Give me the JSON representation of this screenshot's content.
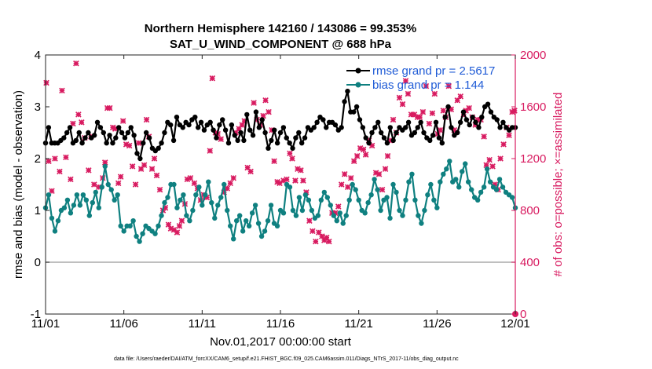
{
  "chart_data": {
    "type": "line",
    "title": "Northern Hemisphere 142160 / 143086 = 99.353%",
    "subtitle": "SAT_U_WIND_COMPONENT @ 688 hPa",
    "xlabel": "Nov.01,2017 00:00:00 start",
    "ylabel": "rmse and bias (model - observation)",
    "y2label": "# of obs: o=possible; ×=assimilated",
    "footnote": "data file: /Users/raeder/DAI/ATM_forcXX/CAM6_setup/f.e21.FHIST_BGC.f09_025.CAM6assim.011/Diags_NTrS_2017-11/obs_diag_output.nc",
    "xlim": [
      0,
      30
    ],
    "ylim": [
      -1,
      4
    ],
    "y2lim": [
      0,
      2000
    ],
    "xticks": [
      0,
      5,
      10,
      15,
      20,
      25,
      30
    ],
    "xtick_labels": [
      "11/01",
      "11/06",
      "11/11",
      "11/16",
      "11/21",
      "11/26",
      "12/01"
    ],
    "yticks": [
      -1,
      0,
      1,
      2,
      3,
      4
    ],
    "ytick_labels": [
      "-1",
      "0",
      "1",
      "2",
      "3",
      "4"
    ],
    "y2ticks": [
      0,
      400,
      800,
      1200,
      1600,
      2000
    ],
    "y2tick_labels": [
      "0",
      "400",
      "800",
      "1200",
      "1600",
      "2000"
    ],
    "legend_position": "top-right",
    "colors": {
      "rmse": "#000000",
      "bias": "#0f8080",
      "obs": "#d81b60",
      "legend_text": "#1f5bd6",
      "zero_line": "#aaaaaa"
    },
    "series": [
      {
        "name": "rmse grand pr = 2.5617",
        "legend": "rmse grand pr = 2.5617",
        "values": [
          2.3,
          2.6,
          2.3,
          2.3,
          2.3,
          2.35,
          2.4,
          2.5,
          2.6,
          2.3,
          2.35,
          2.5,
          2.3,
          2.4,
          2.5,
          2.4,
          2.45,
          2.7,
          2.6,
          2.5,
          2.3,
          2.45,
          2.3,
          2.4,
          2.6,
          2.5,
          2.4,
          2.5,
          2.6,
          2.45,
          2.1,
          2.0,
          2.3,
          2.5,
          2.4,
          2.2,
          2.15,
          2.2,
          2.3,
          2.5,
          2.7,
          2.65,
          2.35,
          2.8,
          2.65,
          2.6,
          2.7,
          2.65,
          2.75,
          2.8,
          2.6,
          2.7,
          2.55,
          2.65,
          2.7,
          2.55,
          2.4,
          2.65,
          2.75,
          2.55,
          2.3,
          2.65,
          2.45,
          2.35,
          2.5,
          2.35,
          2.85,
          2.55,
          2.45,
          2.9,
          2.6,
          2.75,
          2.5,
          2.2,
          2.35,
          2.55,
          2.3,
          2.5,
          2.6,
          2.4,
          2.3,
          2.2,
          2.4,
          2.5,
          2.3,
          2.4,
          2.6,
          2.55,
          2.6,
          2.7,
          2.8,
          2.75,
          2.6,
          2.7,
          2.7,
          2.65,
          2.55,
          2.6,
          3.1,
          3.3,
          2.9,
          2.9,
          3.0,
          2.75,
          2.6,
          2.4,
          2.3,
          2.5,
          2.6,
          2.7,
          2.5,
          2.4,
          2.3,
          2.6,
          2.35,
          2.5,
          2.6,
          2.55,
          2.6,
          2.7,
          2.45,
          2.5,
          2.6,
          2.7,
          2.5,
          2.4,
          2.35,
          2.45,
          2.7,
          2.4,
          2.3,
          2.8,
          3.0,
          2.6,
          2.45,
          2.5,
          2.7,
          2.9,
          2.75,
          2.65,
          2.8,
          2.7,
          2.6,
          2.8,
          3.0,
          3.05,
          2.9,
          2.8,
          2.75,
          2.6,
          2.7,
          2.6,
          2.55,
          2.6,
          2.6
        ],
        "marker": "dot"
      },
      {
        "name": "bias grand pr = 1.144",
        "legend": "bias grand pr = 1.144",
        "values": [
          1.05,
          1.3,
          0.85,
          0.6,
          0.8,
          1.0,
          1.05,
          1.2,
          0.95,
          1.1,
          1.3,
          1.1,
          1.3,
          1.2,
          0.9,
          1.15,
          1.35,
          1.05,
          1.45,
          1.85,
          1.5,
          1.4,
          1.2,
          1.3,
          0.7,
          0.6,
          0.7,
          0.7,
          0.8,
          0.5,
          0.4,
          0.55,
          0.7,
          0.65,
          0.6,
          0.55,
          0.7,
          0.9,
          1.15,
          1.25,
          1.5,
          1.5,
          1.05,
          1.2,
          1.3,
          0.9,
          0.8,
          1.0,
          1.3,
          1.45,
          1.1,
          1.3,
          1.55,
          1.15,
          0.85,
          1.1,
          1.25,
          1.5,
          1.0,
          0.7,
          0.45,
          0.8,
          0.9,
          0.6,
          0.8,
          0.7,
          0.95,
          1.1,
          0.75,
          0.5,
          0.6,
          0.8,
          1.1,
          0.75,
          0.7,
          1.0,
          0.95,
          1.5,
          1.45,
          1.0,
          0.9,
          1.25,
          1.0,
          1.3,
          1.2,
          1.0,
          0.85,
          0.9,
          1.2,
          1.35,
          1.25,
          1.1,
          0.9,
          0.8,
          0.95,
          0.75,
          0.9,
          1.2,
          1.5,
          1.4,
          1.2,
          1.0,
          0.95,
          1.15,
          1.3,
          1.6,
          1.4,
          1.0,
          1.2,
          1.25,
          0.85,
          1.5,
          1.35,
          1.0,
          0.9,
          1.2,
          1.55,
          1.7,
          1.2,
          0.9,
          0.75,
          1.0,
          1.3,
          1.5,
          1.2,
          1.05,
          1.55,
          1.7,
          1.8,
          1.95,
          1.55,
          1.6,
          1.45,
          1.75,
          1.9,
          1.55,
          1.4,
          1.25,
          1.2,
          1.35,
          1.45,
          1.8,
          1.55,
          1.45,
          1.4,
          1.6,
          1.45,
          1.35,
          1.3,
          1.25,
          1.05
        ],
        "marker": "dot"
      }
    ],
    "obs_assimilated": [
      {
        "x": 0.05,
        "y": 1785
      },
      {
        "x": 0.2,
        "y": 1180
      },
      {
        "x": 0.4,
        "y": 950
      },
      {
        "x": 0.6,
        "y": 1200
      },
      {
        "x": 0.9,
        "y": 1100
      },
      {
        "x": 1.05,
        "y": 1725
      },
      {
        "x": 1.3,
        "y": 1210
      },
      {
        "x": 1.6,
        "y": 1040
      },
      {
        "x": 1.75,
        "y": 1470
      },
      {
        "x": 1.95,
        "y": 1935
      },
      {
        "x": 2.1,
        "y": 1540
      },
      {
        "x": 2.3,
        "y": 1480
      },
      {
        "x": 2.5,
        "y": 1360
      },
      {
        "x": 2.75,
        "y": 1110
      },
      {
        "x": 2.9,
        "y": 1370
      },
      {
        "x": 3.1,
        "y": 1000
      },
      {
        "x": 3.4,
        "y": 980
      },
      {
        "x": 3.65,
        "y": 1050
      },
      {
        "x": 3.8,
        "y": 1170
      },
      {
        "x": 3.95,
        "y": 1590
      },
      {
        "x": 4.1,
        "y": 1590
      },
      {
        "x": 4.3,
        "y": 1440
      },
      {
        "x": 4.45,
        "y": 1430
      },
      {
        "x": 4.65,
        "y": 1010
      },
      {
        "x": 4.8,
        "y": 1060
      },
      {
        "x": 4.95,
        "y": 1490
      },
      {
        "x": 5.15,
        "y": 1310
      },
      {
        "x": 5.35,
        "y": 1300
      },
      {
        "x": 5.55,
        "y": 1140
      },
      {
        "x": 5.75,
        "y": 1000
      },
      {
        "x": 5.95,
        "y": 1320
      },
      {
        "x": 6.1,
        "y": 1120
      },
      {
        "x": 6.3,
        "y": 1150
      },
      {
        "x": 6.45,
        "y": 1500
      },
      {
        "x": 6.6,
        "y": 1370
      },
      {
        "x": 6.8,
        "y": 1120
      },
      {
        "x": 6.95,
        "y": 1200
      },
      {
        "x": 7.1,
        "y": 1070
      },
      {
        "x": 7.3,
        "y": 960
      },
      {
        "x": 7.5,
        "y": 800
      },
      {
        "x": 7.65,
        "y": 820
      },
      {
        "x": 7.85,
        "y": 690
      },
      {
        "x": 8.0,
        "y": 660
      },
      {
        "x": 8.2,
        "y": 650
      },
      {
        "x": 8.4,
        "y": 630
      },
      {
        "x": 8.55,
        "y": 680
      },
      {
        "x": 8.7,
        "y": 720
      },
      {
        "x": 8.9,
        "y": 850
      },
      {
        "x": 9.05,
        "y": 1040
      },
      {
        "x": 9.25,
        "y": 1050
      },
      {
        "x": 9.5,
        "y": 1010
      },
      {
        "x": 9.7,
        "y": 970
      },
      {
        "x": 9.9,
        "y": 880
      },
      {
        "x": 10.1,
        "y": 920
      },
      {
        "x": 10.3,
        "y": 900
      },
      {
        "x": 10.5,
        "y": 1260
      },
      {
        "x": 10.65,
        "y": 1820
      },
      {
        "x": 10.85,
        "y": 1400
      },
      {
        "x": 11.0,
        "y": 1390
      },
      {
        "x": 11.2,
        "y": 1350
      },
      {
        "x": 11.4,
        "y": 940
      },
      {
        "x": 11.6,
        "y": 970
      },
      {
        "x": 11.8,
        "y": 1010
      },
      {
        "x": 12.0,
        "y": 1050
      },
      {
        "x": 12.15,
        "y": 1400
      },
      {
        "x": 12.35,
        "y": 1430
      },
      {
        "x": 12.55,
        "y": 1460
      },
      {
        "x": 12.7,
        "y": 1490
      },
      {
        "x": 12.9,
        "y": 1130
      },
      {
        "x": 13.1,
        "y": 1100
      },
      {
        "x": 13.3,
        "y": 1630
      },
      {
        "x": 13.5,
        "y": 1500
      },
      {
        "x": 13.7,
        "y": 1460
      },
      {
        "x": 13.9,
        "y": 1530
      },
      {
        "x": 14.05,
        "y": 1650
      },
      {
        "x": 14.25,
        "y": 1560
      },
      {
        "x": 14.45,
        "y": 1420
      },
      {
        "x": 14.6,
        "y": 1180
      },
      {
        "x": 14.8,
        "y": 1020
      },
      {
        "x": 14.95,
        "y": 1010
      },
      {
        "x": 15.2,
        "y": 1030
      },
      {
        "x": 15.4,
        "y": 1040
      },
      {
        "x": 15.6,
        "y": 1240
      },
      {
        "x": 15.75,
        "y": 1200
      },
      {
        "x": 15.95,
        "y": 1030
      },
      {
        "x": 16.1,
        "y": 1120
      },
      {
        "x": 16.3,
        "y": 1110
      },
      {
        "x": 16.45,
        "y": 1030
      },
      {
        "x": 16.65,
        "y": 940
      },
      {
        "x": 16.85,
        "y": 720
      },
      {
        "x": 17.05,
        "y": 640
      },
      {
        "x": 17.25,
        "y": 560
      },
      {
        "x": 17.45,
        "y": 630
      },
      {
        "x": 17.65,
        "y": 600
      },
      {
        "x": 17.8,
        "y": 570
      },
      {
        "x": 17.95,
        "y": 590
      },
      {
        "x": 18.1,
        "y": 560
      },
      {
        "x": 18.3,
        "y": 780
      },
      {
        "x": 18.5,
        "y": 780
      },
      {
        "x": 18.7,
        "y": 830
      },
      {
        "x": 18.9,
        "y": 1000
      },
      {
        "x": 19.1,
        "y": 1080
      },
      {
        "x": 19.3,
        "y": 980
      },
      {
        "x": 19.5,
        "y": 1050
      },
      {
        "x": 19.7,
        "y": 1180
      },
      {
        "x": 19.9,
        "y": 1220
      },
      {
        "x": 20.1,
        "y": 1280
      },
      {
        "x": 20.3,
        "y": 1270
      },
      {
        "x": 20.45,
        "y": 1230
      },
      {
        "x": 20.65,
        "y": 1340
      },
      {
        "x": 20.85,
        "y": 1300
      },
      {
        "x": 21.1,
        "y": 1090
      },
      {
        "x": 21.3,
        "y": 1080
      },
      {
        "x": 21.5,
        "y": 960
      },
      {
        "x": 21.7,
        "y": 1120
      },
      {
        "x": 21.85,
        "y": 1220
      },
      {
        "x": 22.0,
        "y": 1340
      },
      {
        "x": 22.2,
        "y": 1500
      },
      {
        "x": 22.4,
        "y": 1400
      },
      {
        "x": 22.6,
        "y": 1670
      },
      {
        "x": 22.8,
        "y": 1620
      },
      {
        "x": 23.0,
        "y": 1800
      },
      {
        "x": 23.15,
        "y": 1700
      },
      {
        "x": 23.35,
        "y": 1540
      },
      {
        "x": 23.55,
        "y": 1540
      },
      {
        "x": 23.75,
        "y": 1520
      },
      {
        "x": 23.9,
        "y": 1520
      },
      {
        "x": 24.1,
        "y": 1560
      },
      {
        "x": 24.3,
        "y": 1760
      },
      {
        "x": 24.5,
        "y": 1470
      },
      {
        "x": 24.7,
        "y": 1550
      },
      {
        "x": 24.85,
        "y": 1700
      },
      {
        "x": 25.05,
        "y": 1390
      },
      {
        "x": 25.2,
        "y": 1420
      },
      {
        "x": 25.4,
        "y": 1570
      },
      {
        "x": 25.55,
        "y": 1520
      },
      {
        "x": 25.75,
        "y": 1760
      },
      {
        "x": 25.9,
        "y": 1580
      },
      {
        "x": 26.1,
        "y": 1420
      },
      {
        "x": 26.3,
        "y": 1650
      },
      {
        "x": 26.5,
        "y": 1680
      },
      {
        "x": 26.7,
        "y": 1540
      },
      {
        "x": 26.85,
        "y": 1570
      },
      {
        "x": 27.05,
        "y": 1590
      },
      {
        "x": 27.25,
        "y": 1520
      },
      {
        "x": 27.45,
        "y": 1460
      },
      {
        "x": 27.6,
        "y": 1500
      },
      {
        "x": 27.8,
        "y": 1500
      },
      {
        "x": 28.0,
        "y": 1370
      },
      {
        "x": 28.15,
        "y": 1150
      },
      {
        "x": 28.35,
        "y": 1190
      },
      {
        "x": 28.55,
        "y": 1140
      },
      {
        "x": 28.7,
        "y": 1000
      },
      {
        "x": 28.9,
        "y": 960
      },
      {
        "x": 29.05,
        "y": 1200
      },
      {
        "x": 29.25,
        "y": 1310
      },
      {
        "x": 29.45,
        "y": 1440
      },
      {
        "x": 29.6,
        "y": 1380
      },
      {
        "x": 29.8,
        "y": 1560
      },
      {
        "x": 29.95,
        "y": 1570
      }
    ],
    "obs_possible_outlier": {
      "x": 30,
      "y": 0
    }
  }
}
